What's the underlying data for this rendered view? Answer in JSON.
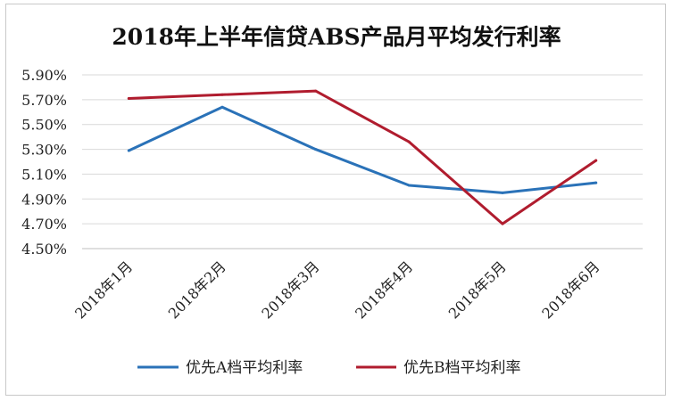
{
  "chart_data": {
    "type": "line",
    "title": "2018年上半年信贷ABS产品月平均发行利率",
    "categories": [
      "2018年1月",
      "2018年2月",
      "2018年3月",
      "2018年4月",
      "2018年5月",
      "2018年6月"
    ],
    "yticks": [
      "4.50%",
      "4.70%",
      "4.90%",
      "5.10%",
      "5.30%",
      "5.50%",
      "5.70%",
      "5.90%"
    ],
    "ylim": [
      4.5,
      5.9
    ],
    "grid": true,
    "legend_position": "bottom",
    "series": [
      {
        "name": "优先A档平均利率",
        "color": "#2a72b8",
        "values": [
          5.29,
          5.64,
          5.3,
          5.01,
          4.95,
          5.03
        ]
      },
      {
        "name": "优先B档平均利率",
        "color": "#b01c2e",
        "values": [
          5.71,
          5.74,
          5.77,
          5.36,
          4.7,
          5.21
        ]
      }
    ]
  }
}
